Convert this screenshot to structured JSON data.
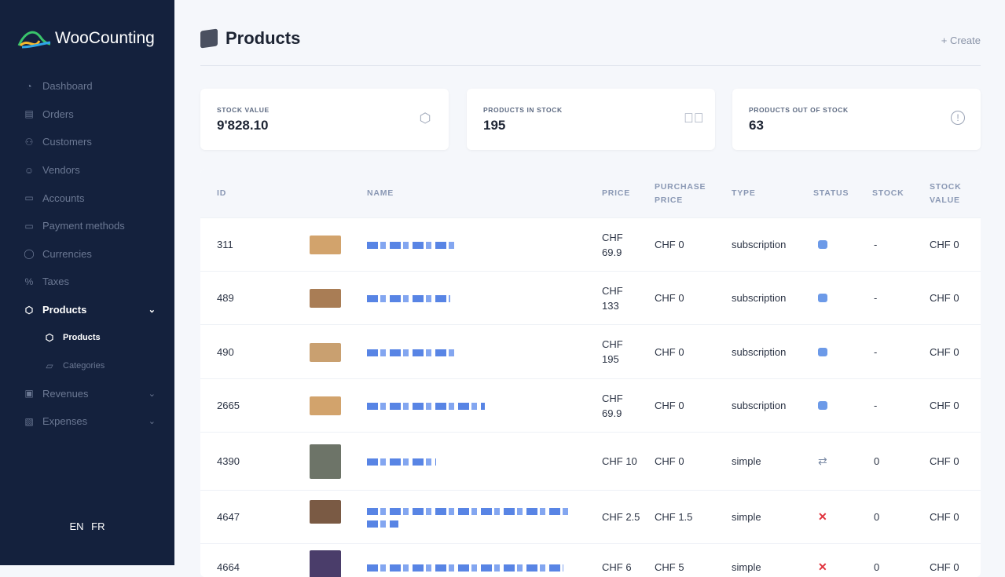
{
  "sidebar": {
    "brand": "WooCounting",
    "items": [
      {
        "label": "Dashboard",
        "icon": "gauge-icon"
      },
      {
        "label": "Orders",
        "icon": "clipboard-icon"
      },
      {
        "label": "Customers",
        "icon": "users-icon"
      },
      {
        "label": "Vendors",
        "icon": "vendor-icon"
      },
      {
        "label": "Accounts",
        "icon": "wallet-icon"
      },
      {
        "label": "Payment methods",
        "icon": "card-icon"
      },
      {
        "label": "Currencies",
        "icon": "coins-icon"
      },
      {
        "label": "Taxes",
        "icon": "percent-icon"
      },
      {
        "label": "Products",
        "icon": "box-icon",
        "active": true
      },
      {
        "label": "Products",
        "icon": "box-icon",
        "sub": true,
        "active": true
      },
      {
        "label": "Categories",
        "icon": "folder-icon",
        "sub": true
      },
      {
        "label": "Revenues",
        "icon": "money-icon"
      },
      {
        "label": "Expenses",
        "icon": "receipt-icon"
      }
    ],
    "languages": [
      "EN",
      "FR"
    ]
  },
  "header": {
    "title": "Products",
    "create": "+ Create"
  },
  "stats": [
    {
      "label": "STOCK VALUE",
      "value": "9'828.10",
      "icon": "boxes-icon"
    },
    {
      "label": "PRODUCTS IN STOCK",
      "value": "195",
      "icon": "check-circle-icon"
    },
    {
      "label": "PRODUCTS OUT OF STOCK",
      "value": "63",
      "icon": "alert-circle-icon"
    }
  ],
  "table": {
    "columns": [
      "ID",
      "NAME",
      "PRICE",
      "PURCHASE PRICE",
      "TYPE",
      "STATUS",
      "STOCK",
      "STOCK VALUE"
    ],
    "rows": [
      {
        "id": "311",
        "price": "CHF 69.9",
        "purchase": "CHF 0",
        "type": "subscription",
        "status": "virtual-box",
        "stock": "-",
        "value": "CHF 0"
      },
      {
        "id": "489",
        "price": "CHF 133",
        "purchase": "CHF 0",
        "type": "subscription",
        "status": "virtual-box",
        "stock": "-",
        "value": "CHF 0"
      },
      {
        "id": "490",
        "price": "CHF 195",
        "purchase": "CHF 0",
        "type": "subscription",
        "status": "virtual-box",
        "stock": "-",
        "value": "CHF 0"
      },
      {
        "id": "2665",
        "price": "CHF 69.9",
        "purchase": "CHF 0",
        "type": "subscription",
        "status": "virtual-box",
        "stock": "-",
        "value": "CHF 0"
      },
      {
        "id": "4390",
        "price": "CHF 10",
        "purchase": "CHF 0",
        "type": "simple",
        "status": "sync",
        "stock": "0",
        "value": "CHF 0"
      },
      {
        "id": "4647",
        "price": "CHF 2.5",
        "purchase": "CHF 1.5",
        "type": "simple",
        "status": "out",
        "stock": "0",
        "value": "CHF 0"
      },
      {
        "id": "4664",
        "price": "CHF 6",
        "purchase": "CHF 5",
        "type": "simple",
        "status": "out",
        "stock": "0",
        "value": "CHF 0"
      }
    ]
  },
  "colors": {
    "sidebar": "#14213d",
    "link": "#3b6fe0",
    "danger": "#e0323c"
  }
}
